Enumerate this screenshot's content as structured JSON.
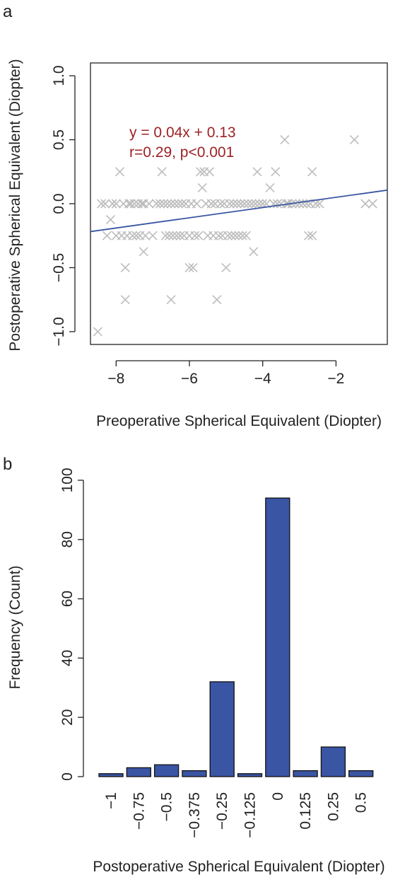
{
  "chart_data": [
    {
      "panel_label": "a",
      "type": "scatter",
      "xlabel": "Preoperative Spherical Equivalent (Diopter)",
      "ylabel": "Postoperative Spherical Equivalent (Diopter)",
      "xlim": [
        -8.7,
        -0.6
      ],
      "ylim": [
        -1.1,
        1.1
      ],
      "xticks": [
        -8,
        -6,
        -4,
        -2
      ],
      "xtick_labels": [
        "−8",
        "−6",
        "−4",
        "−2"
      ],
      "yticks": [
        -1.0,
        -0.5,
        0.0,
        0.5,
        1.0
      ],
      "ytick_labels": [
        "−1.0",
        "−0.5",
        "0.0",
        "0.5",
        "1.0"
      ],
      "marker": "x",
      "marker_color": "#bdbdbd",
      "line_color": "#3a55a4",
      "annotation_color": "#9b2226",
      "annotation": [
        "y = 0.04x + 0.13",
        "r=0.29, p<0.001"
      ],
      "fit": {
        "slope": 0.04,
        "intercept": 0.13
      },
      "points": [
        [
          -8.5,
          -1.0
        ],
        [
          -8.4,
          0.0
        ],
        [
          -8.3,
          0.0
        ],
        [
          -8.25,
          -0.25
        ],
        [
          -8.15,
          -0.125
        ],
        [
          -8.1,
          0.0
        ],
        [
          -8.0,
          -0.25
        ],
        [
          -8.0,
          0.0
        ],
        [
          -7.9,
          0.25
        ],
        [
          -7.85,
          -0.25
        ],
        [
          -7.8,
          0.0
        ],
        [
          -7.75,
          -0.5
        ],
        [
          -7.75,
          -0.75
        ],
        [
          -7.7,
          -0.25
        ],
        [
          -7.65,
          0.0
        ],
        [
          -7.6,
          0.0
        ],
        [
          -7.55,
          -0.25
        ],
        [
          -7.5,
          0.0
        ],
        [
          -7.45,
          -0.25
        ],
        [
          -7.4,
          0.0
        ],
        [
          -7.35,
          -0.25
        ],
        [
          -7.3,
          0.0
        ],
        [
          -7.25,
          -0.375
        ],
        [
          -7.25,
          0.0
        ],
        [
          -7.2,
          -0.25
        ],
        [
          -7.1,
          0.0
        ],
        [
          -7.0,
          -0.25
        ],
        [
          -6.9,
          0.0
        ],
        [
          -6.8,
          0.0
        ],
        [
          -6.75,
          0.25
        ],
        [
          -6.7,
          0.0
        ],
        [
          -6.65,
          -0.25
        ],
        [
          -6.6,
          0.0
        ],
        [
          -6.55,
          -0.25
        ],
        [
          -6.5,
          0.0
        ],
        [
          -6.5,
          -0.75
        ],
        [
          -6.45,
          -0.25
        ],
        [
          -6.4,
          0.0
        ],
        [
          -6.35,
          -0.25
        ],
        [
          -6.3,
          0.0
        ],
        [
          -6.25,
          -0.25
        ],
        [
          -6.2,
          0.0
        ],
        [
          -6.15,
          -0.25
        ],
        [
          -6.1,
          0.0
        ],
        [
          -6.0,
          -0.5
        ],
        [
          -6.0,
          -0.25
        ],
        [
          -5.95,
          0.0
        ],
        [
          -5.9,
          -0.5
        ],
        [
          -5.85,
          -0.25
        ],
        [
          -5.8,
          0.0
        ],
        [
          -5.75,
          -0.25
        ],
        [
          -5.7,
          0.25
        ],
        [
          -5.65,
          0.125
        ],
        [
          -5.6,
          0.25
        ],
        [
          -5.55,
          0.0
        ],
        [
          -5.5,
          -0.25
        ],
        [
          -5.45,
          0.25
        ],
        [
          -5.4,
          0.0
        ],
        [
          -5.35,
          -0.25
        ],
        [
          -5.3,
          0.0
        ],
        [
          -5.25,
          -0.75
        ],
        [
          -5.2,
          -0.25
        ],
        [
          -5.15,
          0.0
        ],
        [
          -5.1,
          -0.25
        ],
        [
          -5.05,
          0.0
        ],
        [
          -5.0,
          -0.5
        ],
        [
          -4.95,
          -0.25
        ],
        [
          -4.9,
          0.0
        ],
        [
          -4.85,
          -0.25
        ],
        [
          -4.8,
          0.0
        ],
        [
          -4.75,
          -0.25
        ],
        [
          -4.7,
          0.0
        ],
        [
          -4.65,
          -0.25
        ],
        [
          -4.6,
          0.0
        ],
        [
          -4.55,
          -0.25
        ],
        [
          -4.5,
          0.0
        ],
        [
          -4.45,
          -0.25
        ],
        [
          -4.4,
          0.0
        ],
        [
          -4.3,
          0.0
        ],
        [
          -4.25,
          -0.375
        ],
        [
          -4.2,
          0.0
        ],
        [
          -4.15,
          0.25
        ],
        [
          -4.1,
          0.0
        ],
        [
          -4.0,
          0.0
        ],
        [
          -3.9,
          0.0
        ],
        [
          -3.8,
          0.125
        ],
        [
          -3.7,
          0.0
        ],
        [
          -3.65,
          0.25
        ],
        [
          -3.6,
          0.0
        ],
        [
          -3.5,
          0.0
        ],
        [
          -3.4,
          0.5
        ],
        [
          -3.35,
          0.0
        ],
        [
          -3.3,
          0.0
        ],
        [
          -3.2,
          0.0
        ],
        [
          -3.1,
          0.0
        ],
        [
          -3.0,
          0.0
        ],
        [
          -2.9,
          0.0
        ],
        [
          -2.8,
          0.0
        ],
        [
          -2.75,
          -0.25
        ],
        [
          -2.7,
          0.0
        ],
        [
          -2.65,
          0.25
        ],
        [
          -2.65,
          -0.25
        ],
        [
          -2.55,
          0.0
        ],
        [
          -2.45,
          0.0
        ],
        [
          -1.5,
          0.5
        ],
        [
          -1.2,
          0.0
        ],
        [
          -1.0,
          0.0
        ]
      ]
    },
    {
      "panel_label": "b",
      "type": "bar",
      "xlabel": "Postoperative Spherical Equivalent (Diopter)",
      "ylabel": "Frequency (Count)",
      "categories": [
        "−1",
        "−0.75",
        "−0.5",
        "−0.375",
        "−0.25",
        "−0.125",
        "0",
        "0.125",
        "0.25",
        "0.5"
      ],
      "values": [
        1,
        3,
        4,
        2,
        32,
        1,
        94,
        2,
        10,
        2
      ],
      "ylim": [
        0,
        100
      ],
      "yticks": [
        0,
        20,
        40,
        60,
        80,
        100
      ],
      "ytick_labels": [
        "0",
        "20",
        "40",
        "60",
        "80",
        "100"
      ],
      "bar_color": "#3a55a4"
    }
  ]
}
